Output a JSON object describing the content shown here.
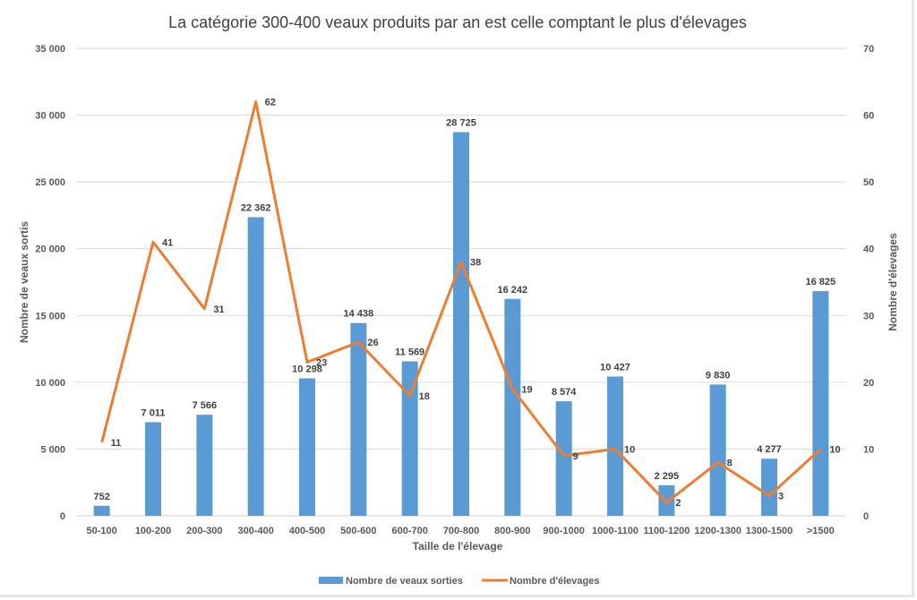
{
  "chart_data": {
    "type": "bar+line",
    "title": "La catégorie 300-400 veaux produits par an est celle comptant le plus d'élevages",
    "xlabel": "Taille de l'élevage",
    "ylabel": "Nombre de veaux sortis",
    "y2label": "Nombre d'élevages",
    "categories": [
      "50-100",
      "100-200",
      "200-300",
      "300-400",
      "400-500",
      "500-600",
      "600-700",
      "700-800",
      "800-900",
      "900-1000",
      "1000-1100",
      "1100-1200",
      "1200-1300",
      "1300-1500",
      ">1500"
    ],
    "series": [
      {
        "name": "Nombre de veaux sorties",
        "type": "bar",
        "axis": "left",
        "color": "#5b9bd5",
        "values": [
          752,
          7011,
          7566,
          22362,
          10298,
          14438,
          11569,
          28725,
          16242,
          8574,
          10427,
          2295,
          9830,
          4277,
          16825
        ],
        "labels": [
          "752",
          "7 011",
          "7 566",
          "22 362",
          "10 298",
          "14 438",
          "11 569",
          "28 725",
          "16 242",
          "8 574",
          "10 427",
          "2 295",
          "9 830",
          "4 277",
          "16 825"
        ]
      },
      {
        "name": "Nombre d'élevages",
        "type": "line",
        "axis": "right",
        "color": "#ed7d31",
        "values": [
          11,
          41,
          31,
          62,
          23,
          26,
          18,
          38,
          19,
          9,
          10,
          2,
          8,
          3,
          10
        ],
        "labels": [
          "11",
          "41",
          "31",
          "62",
          "23",
          "26",
          "18",
          "38",
          "19",
          "9",
          "10",
          "2",
          "8",
          "3",
          "10"
        ]
      }
    ],
    "ylim": [
      0,
      35000
    ],
    "y2lim": [
      0,
      70
    ],
    "yticks": [
      0,
      5000,
      10000,
      15000,
      20000,
      25000,
      30000,
      35000
    ],
    "ytick_labels": [
      "0",
      "5 000",
      "10 000",
      "15 000",
      "20 000",
      "25 000",
      "30 000",
      "35 000"
    ],
    "y2ticks": [
      0,
      10,
      20,
      30,
      40,
      50,
      60,
      70
    ],
    "y2tick_labels": [
      "0",
      "10",
      "20",
      "30",
      "40",
      "50",
      "60",
      "70"
    ],
    "grid": true,
    "legend": "bottom-center",
    "gridline_color": "#d9d9d9"
  }
}
